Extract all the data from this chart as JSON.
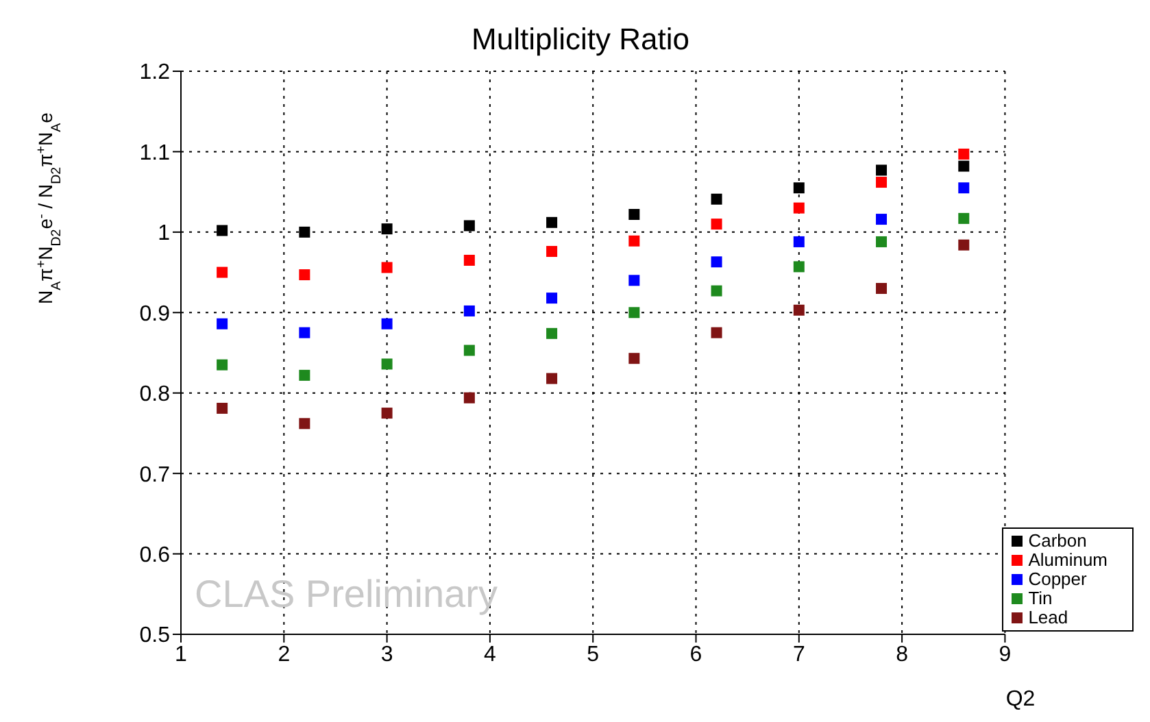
{
  "chart_data": {
    "type": "scatter",
    "title": "Multiplicity Ratio",
    "xlabel": "Q2",
    "ylabel": "N$_{A}$π$^{+}$N$_{D2}$e$^{-}$ / N$_{D2}$π$^{+}$N$_{A}$e",
    "annotations": [
      "CLAS Preliminary"
    ],
    "x": [
      1.4,
      2.2,
      3.0,
      3.8,
      4.6,
      5.4,
      6.2,
      7.0,
      7.8,
      8.6
    ],
    "series": [
      {
        "name": "Carbon",
        "color": "#000000",
        "values": [
          1.002,
          1.0,
          1.004,
          1.008,
          1.012,
          1.022,
          1.041,
          1.055,
          1.077,
          1.082
        ]
      },
      {
        "name": "Aluminum",
        "color": "#ff0000",
        "values": [
          0.95,
          0.947,
          0.956,
          0.965,
          0.976,
          0.989,
          1.01,
          1.03,
          1.062,
          1.097
        ]
      },
      {
        "name": "Copper",
        "color": "#0000ff",
        "values": [
          0.886,
          0.875,
          0.886,
          0.902,
          0.918,
          0.94,
          0.963,
          0.988,
          1.016,
          1.055
        ]
      },
      {
        "name": "Tin",
        "color": "#1e8a1e",
        "values": [
          0.835,
          0.822,
          0.836,
          0.853,
          0.874,
          0.9,
          0.927,
          0.957,
          0.988,
          1.017
        ]
      },
      {
        "name": "Lead",
        "color": "#801414",
        "values": [
          0.781,
          0.762,
          0.775,
          0.794,
          0.818,
          0.843,
          0.875,
          0.903,
          0.93,
          0.984
        ]
      }
    ],
    "xlim": [
      1,
      9
    ],
    "xticks": [
      1,
      2,
      3,
      4,
      5,
      6,
      7,
      8,
      9
    ],
    "ylim": [
      0.5,
      1.2
    ],
    "yticks": [
      0.5,
      0.6,
      0.7,
      0.8,
      0.9,
      1,
      1.1,
      1.2
    ],
    "grid": true,
    "legend": "bottom right",
    "marker": "square"
  }
}
